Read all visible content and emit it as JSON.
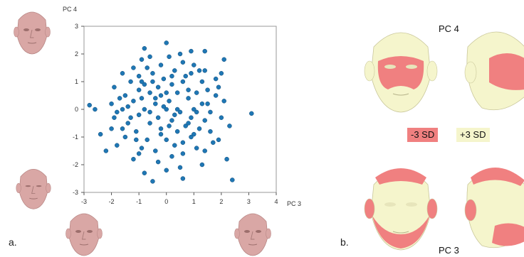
{
  "panel_a": {
    "label": "a."
  },
  "panel_b": {
    "label": "b.",
    "top_title": "PC 4",
    "bottom_title": "PC 3",
    "legend": [
      {
        "text": "-3 SD",
        "color": "#f08080"
      },
      {
        "text": "+3 SD",
        "color": "#f5f5cc"
      }
    ]
  },
  "colors": {
    "points": "#1f77b4",
    "face_skin": "#d9a7a5",
    "heat_low": "#f08080",
    "heat_high": "#f5f5cc",
    "axis": "#555555",
    "frame": "#9a9a9a"
  },
  "chart_data": {
    "type": "scatter",
    "xlabel": "PC 3",
    "ylabel": "PC 4",
    "xlim": [
      -3,
      4
    ],
    "ylim": [
      -3,
      3
    ],
    "xticks": [
      -3,
      -2,
      -1,
      0,
      1,
      2,
      3,
      4
    ],
    "yticks": [
      -3,
      -2,
      -1,
      0,
      1,
      2,
      3
    ],
    "grid": false,
    "series": [
      {
        "points": [
          [
            0.0,
            2.4
          ],
          [
            -1.6,
            1.3
          ],
          [
            -0.8,
            2.2
          ],
          [
            0.5,
            2.0
          ],
          [
            0.6,
            1.7
          ],
          [
            1.4,
            2.1
          ],
          [
            2.1,
            1.8
          ],
          [
            0.9,
            2.1
          ],
          [
            -0.6,
            1.9
          ],
          [
            -0.9,
            1.8
          ],
          [
            0.1,
            1.9
          ],
          [
            -0.2,
            1.6
          ],
          [
            -1.2,
            1.5
          ],
          [
            1.0,
            1.6
          ],
          [
            1.8,
            1.1
          ],
          [
            -0.5,
            1.3
          ],
          [
            0.3,
            1.4
          ],
          [
            0.9,
            1.3
          ],
          [
            -1.3,
            1.0
          ],
          [
            -1.9,
            0.8
          ],
          [
            -0.1,
            1.1
          ],
          [
            0.6,
            1.0
          ],
          [
            1.3,
            1.0
          ],
          [
            -0.8,
            0.9
          ],
          [
            -0.3,
            0.8
          ],
          [
            0.2,
            0.9
          ],
          [
            1.9,
            0.8
          ],
          [
            -1.0,
            0.7
          ],
          [
            -0.6,
            0.6
          ],
          [
            0.4,
            0.6
          ],
          [
            1.1,
            0.6
          ],
          [
            1.5,
            0.7
          ],
          [
            -1.5,
            0.5
          ],
          [
            -0.2,
            0.5
          ],
          [
            0.8,
            0.4
          ],
          [
            -2.0,
            0.2
          ],
          [
            -1.2,
            0.3
          ],
          [
            -0.4,
            0.2
          ],
          [
            0.1,
            0.3
          ],
          [
            1.3,
            0.2
          ],
          [
            2.1,
            0.3
          ],
          [
            -2.8,
            0.15
          ],
          [
            -2.6,
            0.0
          ],
          [
            -1.6,
            0.0
          ],
          [
            -0.8,
            0.0
          ],
          [
            0.0,
            0.0
          ],
          [
            0.5,
            -0.1
          ],
          [
            1.0,
            0.0
          ],
          [
            1.6,
            -0.1
          ],
          [
            3.1,
            -0.15
          ],
          [
            -1.9,
            -0.3
          ],
          [
            -1.0,
            -0.2
          ],
          [
            -0.3,
            -0.3
          ],
          [
            0.3,
            -0.2
          ],
          [
            0.9,
            -0.3
          ],
          [
            1.4,
            -0.4
          ],
          [
            2.0,
            -0.3
          ],
          [
            -1.4,
            -0.5
          ],
          [
            -0.6,
            -0.5
          ],
          [
            0.1,
            -0.6
          ],
          [
            0.7,
            -0.6
          ],
          [
            1.2,
            -0.7
          ],
          [
            -2.0,
            -0.7
          ],
          [
            -1.1,
            -0.8
          ],
          [
            -0.2,
            -0.9
          ],
          [
            0.4,
            -0.8
          ],
          [
            1.6,
            -0.8
          ],
          [
            -1.5,
            -1.0
          ],
          [
            -0.7,
            -1.1
          ],
          [
            0.0,
            -1.1
          ],
          [
            0.9,
            -1.0
          ],
          [
            1.9,
            -1.1
          ],
          [
            -1.8,
            -1.3
          ],
          [
            -0.9,
            -1.4
          ],
          [
            0.3,
            -1.3
          ],
          [
            1.1,
            -1.4
          ],
          [
            -0.4,
            -1.5
          ],
          [
            0.6,
            -1.6
          ],
          [
            1.4,
            -1.5
          ],
          [
            -2.2,
            -1.5
          ],
          [
            -1.2,
            -1.8
          ],
          [
            -0.3,
            -1.9
          ],
          [
            0.5,
            -2.1
          ],
          [
            1.3,
            -2.0
          ],
          [
            2.2,
            -1.8
          ],
          [
            -0.8,
            -2.3
          ],
          [
            0.0,
            -2.2
          ],
          [
            -0.5,
            -2.6
          ],
          [
            0.6,
            -2.5
          ],
          [
            2.4,
            -2.55
          ],
          [
            -1.7,
            0.4
          ],
          [
            -0.9,
            0.4
          ],
          [
            0.0,
            0.6
          ],
          [
            1.8,
            0.5
          ],
          [
            -2.4,
            -0.9
          ],
          [
            -1.3,
            -0.3
          ],
          [
            0.2,
            -0.4
          ],
          [
            1.5,
            0.2
          ],
          [
            -0.5,
            1.0
          ],
          [
            0.7,
            1.2
          ],
          [
            1.2,
            1.4
          ],
          [
            -1.0,
            1.2
          ],
          [
            -0.1,
            0.1
          ],
          [
            0.4,
            0.0
          ],
          [
            1.1,
            -0.1
          ],
          [
            -1.8,
            -0.1
          ],
          [
            -0.6,
            -0.1
          ],
          [
            0.8,
            -0.5
          ],
          [
            2.3,
            -0.6
          ],
          [
            -1.6,
            -0.7
          ],
          [
            -0.2,
            -0.7
          ],
          [
            1.0,
            -0.9
          ],
          [
            -1.0,
            -1.6
          ],
          [
            0.2,
            -1.7
          ],
          [
            1.7,
            -1.2
          ],
          [
            -0.4,
            0.4
          ],
          [
            -1.4,
            0.1
          ],
          [
            2.0,
            1.3
          ],
          [
            0.8,
            0.7
          ],
          [
            -0.7,
            1.5
          ],
          [
            0.6,
            -1.2
          ],
          [
            1.4,
            1.4
          ],
          [
            -1.1,
            -1.1
          ],
          [
            -0.9,
            1.0
          ],
          [
            0.2,
            1.2
          ]
        ]
      }
    ]
  }
}
